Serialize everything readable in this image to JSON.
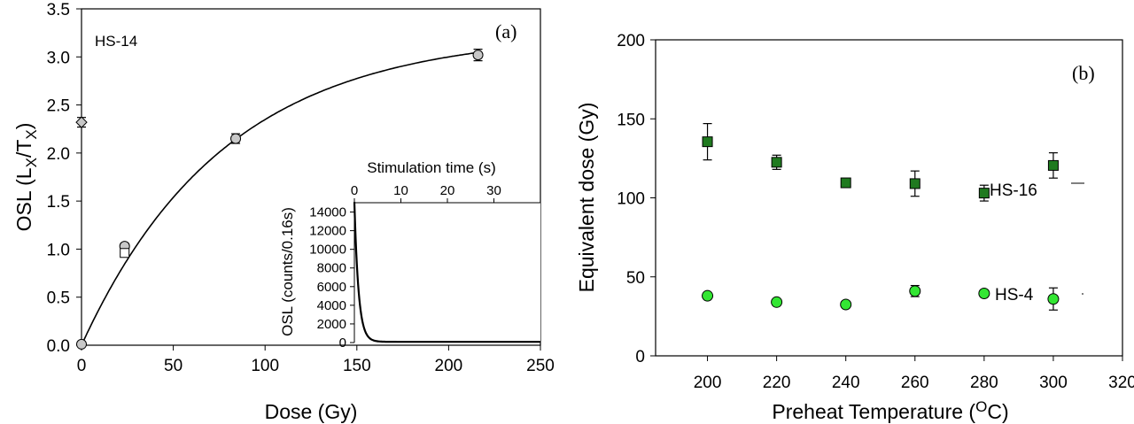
{
  "chart_data": [
    {
      "id": "a",
      "type": "scatter",
      "panel_label": "(a)",
      "sample_label": "HS-14",
      "xlabel": "Dose (Gy)",
      "ylabel_main": "OSL (L",
      "ylabel_sub1": "X",
      "ylabel_mid": "/T",
      "ylabel_sub2": "X",
      "ylabel_end": ")",
      "xlim": [
        0,
        250
      ],
      "ylim": [
        0,
        3.5
      ],
      "xticks": [
        "0",
        "50",
        "100",
        "150",
        "200",
        "250"
      ],
      "yticks": [
        "0.0",
        "0.5",
        "1.0",
        "1.5",
        "2.0",
        "2.5",
        "3.0",
        "3.5"
      ],
      "points": [
        {
          "x": 0,
          "y": 0.01,
          "err": 0.02
        },
        {
          "x": 23.5,
          "y": 1.03,
          "err": 0.03
        },
        {
          "x": 84,
          "y": 2.15,
          "err": 0.05
        },
        {
          "x": 216,
          "y": 3.02,
          "err": 0.06
        }
      ],
      "recycle_point": {
        "x": 23.5,
        "y": 0.96
      },
      "natural_point": {
        "x": 0,
        "y": 2.32,
        "err": 0.05
      },
      "fit_curve": {
        "type": "saturating_exponential",
        "Imax": 3.25,
        "D0": 78
      },
      "inset": {
        "type": "line",
        "xlabel": "Stimulation time (s)",
        "ylabel": "OSL (counts/0.16s)",
        "xlim": [
          0,
          40
        ],
        "ylim": [
          0,
          15000
        ],
        "xticks": [
          "0",
          "10",
          "20",
          "30"
        ],
        "yticks": [
          "0",
          "2000",
          "4000",
          "6000",
          "8000",
          "10000",
          "12000",
          "14000"
        ],
        "curve": {
          "type": "decay",
          "I0": 15000,
          "tau": 0.9,
          "background": 80
        }
      }
    },
    {
      "id": "b",
      "type": "scatter",
      "panel_label": "(b)",
      "xlabel_main": "Preheat Temperature (",
      "xlabel_sup": "O",
      "xlabel_end": "C)",
      "ylabel": "Equivalent dose (Gy)",
      "xlim": [
        185,
        320
      ],
      "ylim": [
        0,
        200
      ],
      "xticks": [
        "200",
        "220",
        "240",
        "260",
        "280",
        "300",
        "320"
      ],
      "yticks": [
        "0",
        "50",
        "100",
        "150",
        "200"
      ],
      "series": [
        {
          "name": "HS-16",
          "color": "#1f7a1f",
          "marker": "square",
          "x": [
            200,
            220,
            240,
            260,
            280,
            300
          ],
          "y": [
            135.5,
            122.5,
            109.5,
            109,
            103,
            120.5
          ],
          "err": [
            11.5,
            4.5,
            1.5,
            8,
            5,
            8
          ]
        },
        {
          "name": "HS-4",
          "color": "#33e633",
          "marker": "circle",
          "x": [
            200,
            220,
            240,
            260,
            280,
            300
          ],
          "y": [
            38,
            34,
            32.5,
            41,
            39.5,
            36
          ],
          "err": [
            1.5,
            1,
            1,
            3.5,
            2,
            7
          ]
        }
      ]
    }
  ]
}
